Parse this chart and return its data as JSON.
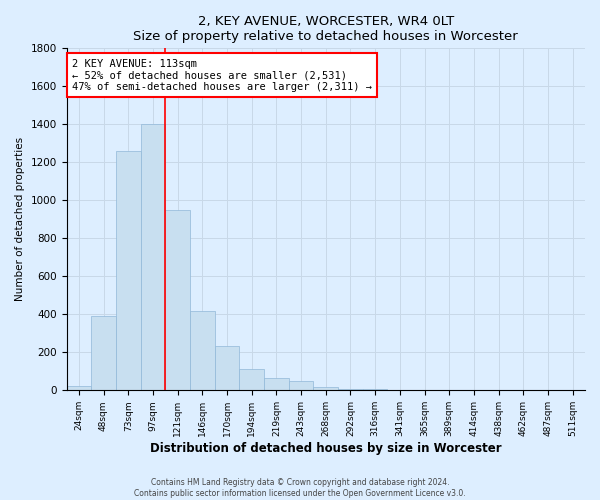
{
  "title": "2, KEY AVENUE, WORCESTER, WR4 0LT",
  "subtitle": "Size of property relative to detached houses in Worcester",
  "xlabel": "Distribution of detached houses by size in Worcester",
  "ylabel": "Number of detached properties",
  "bar_labels": [
    "24sqm",
    "48sqm",
    "73sqm",
    "97sqm",
    "121sqm",
    "146sqm",
    "170sqm",
    "194sqm",
    "219sqm",
    "243sqm",
    "268sqm",
    "292sqm",
    "316sqm",
    "341sqm",
    "365sqm",
    "389sqm",
    "414sqm",
    "438sqm",
    "462sqm",
    "487sqm",
    "511sqm"
  ],
  "bar_values": [
    25,
    390,
    1260,
    1400,
    950,
    420,
    235,
    110,
    65,
    50,
    15,
    5,
    5,
    2,
    2,
    2,
    0,
    0,
    0,
    0,
    0
  ],
  "bar_color": "#c8dff0",
  "bar_edge_color": "#90b8d8",
  "vline_index": 3.5,
  "vline_color": "red",
  "annotation_line1": "2 KEY AVENUE: 113sqm",
  "annotation_line2": "← 52% of detached houses are smaller (2,531)",
  "annotation_line3": "47% of semi-detached houses are larger (2,311) →",
  "annotation_box_color": "white",
  "annotation_box_edge": "red",
  "ylim": [
    0,
    1800
  ],
  "yticks": [
    0,
    200,
    400,
    600,
    800,
    1000,
    1200,
    1400,
    1600,
    1800
  ],
  "footer_line1": "Contains HM Land Registry data © Crown copyright and database right 2024.",
  "footer_line2": "Contains public sector information licensed under the Open Government Licence v3.0.",
  "grid_color": "#c8d8e8",
  "bg_color": "#ddeeff"
}
